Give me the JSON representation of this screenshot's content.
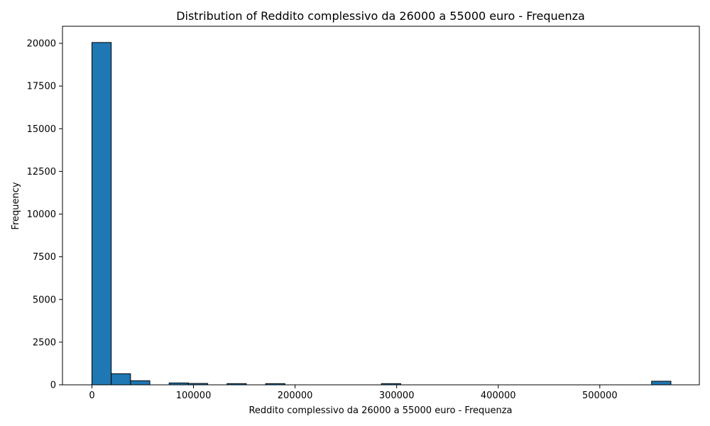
{
  "chart_data": {
    "type": "bar",
    "title": "Distribution of Reddito complessivo da 26000 a 55000 euro - Frequenza",
    "xlabel": "Reddito complessivo da 26000 a 55000 euro - Frequenza",
    "ylabel": "Frequency",
    "xlim": [
      -29000,
      598000
    ],
    "ylim": [
      0,
      21000
    ],
    "grid": false,
    "bar_color": "#1f77b4",
    "edge_color": "#000000",
    "x_ticks": [
      {
        "value": 0,
        "label": "0"
      },
      {
        "value": 100000,
        "label": "100000"
      },
      {
        "value": 200000,
        "label": "200000"
      },
      {
        "value": 300000,
        "label": "300000"
      },
      {
        "value": 400000,
        "label": "400000"
      },
      {
        "value": 500000,
        "label": "500000"
      }
    ],
    "y_ticks": [
      {
        "value": 0,
        "label": "0"
      },
      {
        "value": 2500,
        "label": "2500"
      },
      {
        "value": 5000,
        "label": "5000"
      },
      {
        "value": 7500,
        "label": "7500"
      },
      {
        "value": 10000,
        "label": "10000"
      },
      {
        "value": 12500,
        "label": "12500"
      },
      {
        "value": 15000,
        "label": "15000"
      },
      {
        "value": 17500,
        "label": "17500"
      },
      {
        "value": 20000,
        "label": "20000"
      }
    ],
    "bins": [
      {
        "x0": 0,
        "x1": 19000,
        "count": 20050
      },
      {
        "x0": 19000,
        "x1": 38000,
        "count": 650
      },
      {
        "x0": 38000,
        "x1": 57000,
        "count": 240
      },
      {
        "x0": 57000,
        "x1": 76000,
        "count": 0
      },
      {
        "x0": 76000,
        "x1": 95000,
        "count": 110
      },
      {
        "x0": 95000,
        "x1": 114000,
        "count": 80
      },
      {
        "x0": 114000,
        "x1": 133000,
        "count": 0
      },
      {
        "x0": 133000,
        "x1": 152000,
        "count": 70
      },
      {
        "x0": 152000,
        "x1": 171000,
        "count": 0
      },
      {
        "x0": 171000,
        "x1": 190000,
        "count": 70
      },
      {
        "x0": 190000,
        "x1": 209000,
        "count": 0
      },
      {
        "x0": 209000,
        "x1": 228000,
        "count": 0
      },
      {
        "x0": 228000,
        "x1": 247000,
        "count": 0
      },
      {
        "x0": 247000,
        "x1": 266000,
        "count": 0
      },
      {
        "x0": 266000,
        "x1": 285000,
        "count": 0
      },
      {
        "x0": 285000,
        "x1": 304000,
        "count": 70
      },
      {
        "x0": 304000,
        "x1": 323000,
        "count": 0
      },
      {
        "x0": 323000,
        "x1": 342000,
        "count": 0
      },
      {
        "x0": 342000,
        "x1": 361000,
        "count": 0
      },
      {
        "x0": 361000,
        "x1": 380000,
        "count": 0
      },
      {
        "x0": 380000,
        "x1": 399000,
        "count": 0
      },
      {
        "x0": 399000,
        "x1": 418000,
        "count": 0
      },
      {
        "x0": 418000,
        "x1": 437000,
        "count": 0
      },
      {
        "x0": 437000,
        "x1": 456000,
        "count": 0
      },
      {
        "x0": 456000,
        "x1": 475000,
        "count": 0
      },
      {
        "x0": 475000,
        "x1": 494000,
        "count": 0
      },
      {
        "x0": 494000,
        "x1": 513000,
        "count": 0
      },
      {
        "x0": 513000,
        "x1": 532000,
        "count": 0
      },
      {
        "x0": 532000,
        "x1": 551000,
        "count": 0
      },
      {
        "x0": 551000,
        "x1": 570000,
        "count": 210
      }
    ]
  }
}
